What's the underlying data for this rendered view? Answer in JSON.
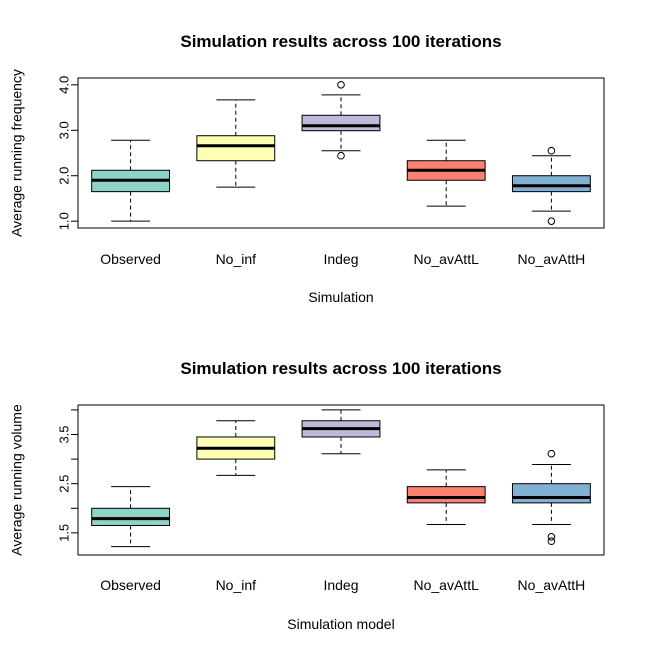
{
  "chart_data": [
    {
      "type": "box",
      "title": "Simulation results across 100 iterations",
      "xlabel": "Simulation",
      "ylabel": "Average running frequency",
      "ylim": [
        0.85,
        4.15
      ],
      "yticks": [
        1.0,
        2.0,
        3.0,
        4.0
      ],
      "yticklabels": [
        "1.0",
        "2.0",
        "3.0",
        "4.0"
      ],
      "grid": false,
      "categories": [
        "Observed",
        "No_inf",
        "Indeg",
        "No_avAttL",
        "No_avAttH"
      ],
      "boxes": [
        {
          "category": "Observed",
          "color": "#8DD3C7",
          "min": 1.0,
          "q1": 1.65,
          "median": 1.9,
          "q3": 2.12,
          "max": 2.78,
          "outliers": []
        },
        {
          "category": "No_inf",
          "color": "#FFFFB3",
          "min": 1.75,
          "q1": 2.33,
          "median": 2.66,
          "q3": 2.88,
          "max": 3.67,
          "outliers": []
        },
        {
          "category": "Indeg",
          "color": "#BEBADA",
          "min": 2.55,
          "q1": 2.99,
          "median": 3.1,
          "q3": 3.33,
          "max": 3.78,
          "outliers": [
            2.44,
            4.0
          ]
        },
        {
          "category": "No_avAttL",
          "color": "#FB8072",
          "min": 1.33,
          "q1": 1.9,
          "median": 2.12,
          "q3": 2.33,
          "max": 2.78,
          "outliers": []
        },
        {
          "category": "No_avAttH",
          "color": "#80B1D3",
          "min": 1.22,
          "q1": 1.65,
          "median": 1.78,
          "q3": 2.0,
          "max": 2.44,
          "outliers": [
            1.0,
            2.55
          ]
        }
      ]
    },
    {
      "type": "box",
      "title": "Simulation results across 100 iterations",
      "xlabel": "Simulation model",
      "ylabel": "Average running volume",
      "ylim": [
        1.05,
        4.1
      ],
      "yticks": [
        1.5,
        2.0,
        2.5,
        3.0,
        3.5,
        4.0
      ],
      "yticklabels": [
        "1.5",
        "",
        "2.5",
        "",
        "3.5",
        ""
      ],
      "grid": false,
      "categories": [
        "Observed",
        "No_inf",
        "Indeg",
        "No_avAttL",
        "No_avAttH"
      ],
      "boxes": [
        {
          "category": "Observed",
          "color": "#8DD3C7",
          "min": 1.22,
          "q1": 1.65,
          "median": 1.79,
          "q3": 2.0,
          "max": 2.44,
          "outliers": []
        },
        {
          "category": "No_inf",
          "color": "#FFFFB3",
          "min": 2.67,
          "q1": 3.0,
          "median": 3.22,
          "q3": 3.45,
          "max": 3.78,
          "outliers": []
        },
        {
          "category": "Indeg",
          "color": "#BEBADA",
          "min": 3.11,
          "q1": 3.45,
          "median": 3.62,
          "q3": 3.78,
          "max": 4.0,
          "outliers": []
        },
        {
          "category": "No_avAttL",
          "color": "#FB8072",
          "min": 1.67,
          "q1": 2.11,
          "median": 2.22,
          "q3": 2.44,
          "max": 2.78,
          "outliers": []
        },
        {
          "category": "No_avAttH",
          "color": "#80B1D3",
          "min": 1.67,
          "q1": 2.11,
          "median": 2.22,
          "q3": 2.5,
          "max": 2.89,
          "outliers": [
            1.33,
            1.42,
            3.11
          ]
        }
      ]
    }
  ]
}
